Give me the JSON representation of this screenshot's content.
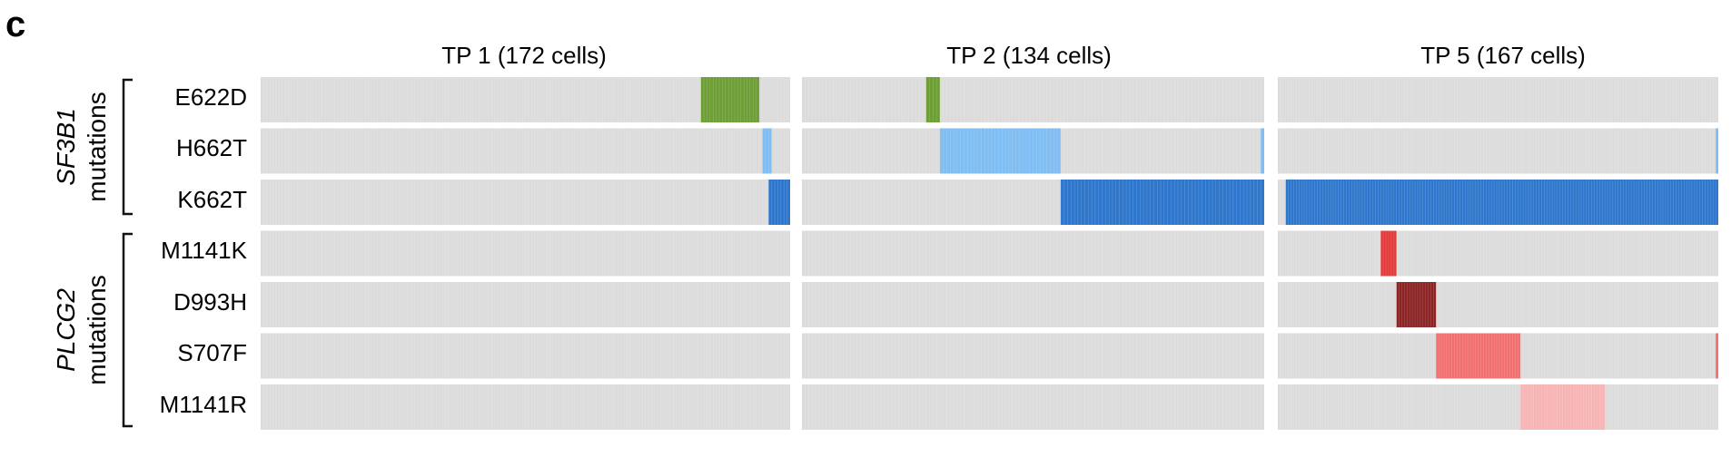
{
  "panel_letter": "c",
  "chart_data": {
    "type": "heatmap",
    "description_axis": "cells (columns) x mutations (rows)",
    "timepoints": [
      {
        "title": "TP 1 (172 cells)",
        "cells": 172
      },
      {
        "title": "TP 2 (134 cells)",
        "cells": 134
      },
      {
        "title": "TP 5 (167 cells)",
        "cells": 167
      }
    ],
    "groups": [
      {
        "gene": "SF3B1",
        "label_suffix": "mutations",
        "rows": [
          "E622D",
          "H662T",
          "K662T"
        ]
      },
      {
        "gene": "PLCG2",
        "label_suffix": "mutations",
        "rows": [
          "M1141K",
          "D993H",
          "S707F",
          "M1141R"
        ]
      }
    ],
    "rows": [
      "E622D",
      "H662T",
      "K662T",
      "M1141K",
      "D993H",
      "S707F",
      "M1141R"
    ],
    "colors": {
      "background": "#dcdcdc",
      "E622D": "#6e9e36",
      "H662T": "#7fbdf2",
      "K662T": "#2e77cc",
      "M1141K": "#e33b3b",
      "D993H": "#8b2424",
      "S707F": "#f26f6f",
      "M1141R": "#f7b4b4"
    },
    "mutant_cell_ranges": [
      {
        "tp": 0,
        "row": "E622D",
        "start": 143,
        "end": 162
      },
      {
        "tp": 0,
        "row": "H662T",
        "start": 163,
        "end": 166
      },
      {
        "tp": 0,
        "row": "K662T",
        "start": 165,
        "end": 172
      },
      {
        "tp": 1,
        "row": "E622D",
        "start": 36,
        "end": 40
      },
      {
        "tp": 1,
        "row": "H662T",
        "start": 40,
        "end": 75
      },
      {
        "tp": 1,
        "row": "H662T",
        "start": 133,
        "end": 134
      },
      {
        "tp": 1,
        "row": "K662T",
        "start": 75,
        "end": 134
      },
      {
        "tp": 2,
        "row": "H662T",
        "start": 166,
        "end": 167
      },
      {
        "tp": 2,
        "row": "K662T",
        "start": 3,
        "end": 167
      },
      {
        "tp": 2,
        "row": "M1141K",
        "start": 39,
        "end": 45
      },
      {
        "tp": 2,
        "row": "D993H",
        "start": 45,
        "end": 60
      },
      {
        "tp": 2,
        "row": "S707F",
        "start": 60,
        "end": 92
      },
      {
        "tp": 2,
        "row": "S707F",
        "start": 166,
        "end": 167
      },
      {
        "tp": 2,
        "row": "M1141R",
        "start": 92,
        "end": 124
      }
    ]
  }
}
